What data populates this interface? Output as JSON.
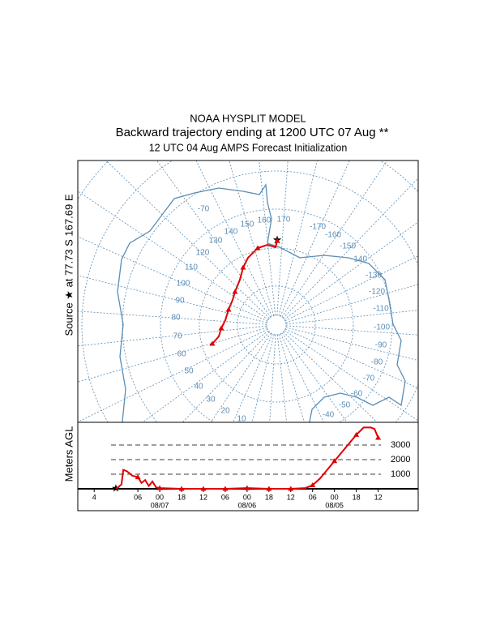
{
  "header": {
    "line1": "NOAA HYSPLIT MODEL",
    "line2": "Backward trajectory ending at 1200 UTC 07 Aug **",
    "line3": "12 UTC 04 Aug    AMPS  Forecast Initialization"
  },
  "source_label": "Source ★ at   77.73 S  167.69 E",
  "map": {
    "labels": [
      "-70",
      "160",
      "170",
      "150",
      "-170",
      "140",
      "-160",
      "130",
      "-150",
      "120",
      "-140",
      "110",
      "-130",
      "100",
      "-120",
      "90",
      "-110",
      "80",
      "-100",
      "70",
      "-90",
      "60",
      "-80",
      "50",
      "-70",
      "40",
      "-60",
      "30",
      "-50",
      "20",
      "-40",
      "10"
    ]
  },
  "chart_data": {
    "type": "line",
    "y_label": "Meters AGL",
    "x": [
      0,
      1.5,
      2,
      3,
      4.5,
      6,
      7,
      8,
      9,
      10,
      11,
      12,
      18,
      24,
      30,
      36,
      42,
      48,
      52,
      54,
      56,
      58,
      60,
      62,
      64,
      66,
      68,
      70,
      71,
      72
    ],
    "series": [
      {
        "color": "#e00000",
        "values": [
          0,
          300,
          1300,
          1200,
          900,
          800,
          400,
          600,
          200,
          500,
          100,
          50,
          0,
          0,
          0,
          50,
          0,
          0,
          50,
          250,
          700,
          1300,
          1900,
          2500,
          3100,
          3700,
          4200,
          4200,
          4100,
          3500
        ]
      }
    ],
    "xlim": [
      -10.5,
      83
    ],
    "xticks": [
      {
        "value": -6,
        "label": "4"
      },
      {
        "value": 6,
        "label": "06"
      },
      {
        "value": 12,
        "label": "00"
      },
      {
        "value": 18,
        "label": "18"
      },
      {
        "value": 24,
        "label": "12"
      },
      {
        "value": 30,
        "label": "06"
      },
      {
        "value": 36,
        "label": "00"
      },
      {
        "value": 42,
        "label": "18"
      },
      {
        "value": 48,
        "label": "12"
      },
      {
        "value": 54,
        "label": "06"
      },
      {
        "value": 60,
        "label": "00"
      },
      {
        "value": 66,
        "label": "18"
      },
      {
        "value": 72,
        "label": "12"
      }
    ],
    "date_labels": [
      {
        "value": 12,
        "label": "08/07"
      },
      {
        "value": 36,
        "label": "08/06"
      },
      {
        "value": 60,
        "label": "08/05"
      }
    ],
    "ylim": [
      0,
      4500
    ],
    "yticks": [
      1000,
      2000,
      3000
    ]
  }
}
